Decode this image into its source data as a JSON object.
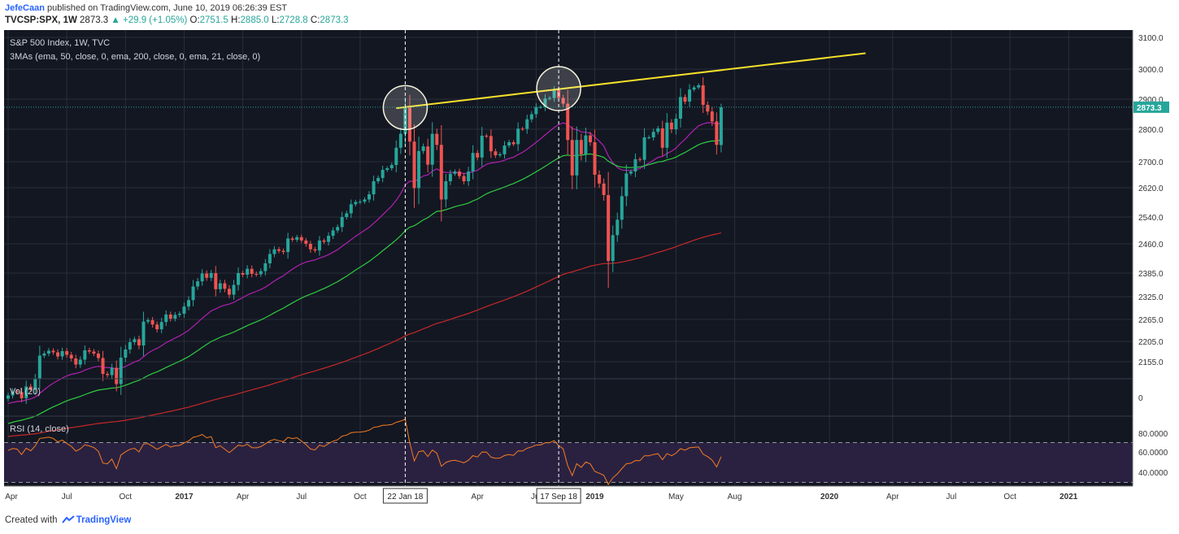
{
  "header": {
    "author": "JefeCaan",
    "published_text": "published on TradingView.com, June 10, 2019 06:26:39 EST",
    "symbol_interval": "TVCSP:SPX, 1W",
    "last_price": "2873.3",
    "change": "+29.9 (+1.05%)",
    "open_label": "O:",
    "open_value": "2751.5",
    "high_label": "H:",
    "high_value": "2885.0",
    "low_label": "L:",
    "low_value": "2728.8",
    "close_label": "C:",
    "close_value": "2873.3"
  },
  "footer": {
    "created_with": "Created with",
    "brand": "TradingView"
  },
  "colors": {
    "background": "#131722",
    "grid": "#2a2e39",
    "up": "#26a69a",
    "down": "#ef5350",
    "ema50": "#b020b0",
    "ema200": "#c62828",
    "ema21": "#2ecc40",
    "trendline": "#f5e02a",
    "rsi_line": "#f57c20",
    "rsi_band": "#2a2141",
    "price_tag": "#26a69a"
  },
  "chart_data": {
    "type": "candlestick",
    "title": "S&P 500 Index, 1W, TVC",
    "indicator_label": "3MAs (ema, 50, close, 0, ema, 200, close, 0, ema, 21, close, 0)",
    "volume_label": "Vol (20)",
    "rsi_label": "RSI (14, close)",
    "price_axis_ticks": [
      3100,
      3000,
      2900,
      2800,
      2700,
      2620,
      2540,
      2460,
      2385,
      2325,
      2265,
      2205,
      2155
    ],
    "price_axis_labels": [
      "3100.0",
      "3000.0",
      "2900.0",
      "2800.0",
      "2700.0",
      "2620.0",
      "2540.0",
      "2460.0",
      "2385.0",
      "2325.0",
      "2265.0",
      "2205.0",
      "2155.0"
    ],
    "volume_axis_labels": [
      "0"
    ],
    "rsi_axis_ticks": [
      80,
      60,
      40
    ],
    "rsi_axis_labels": [
      "80.0000",
      "60.0000",
      "40.0000"
    ],
    "rsi_bands": [
      70,
      30
    ],
    "time_axis_labels": [
      "Apr",
      "Jul",
      "Oct",
      "2017",
      "Apr",
      "Jul",
      "Oct",
      "Apr",
      "Jul",
      "2019",
      "May",
      "Aug",
      "2020",
      "Apr",
      "Jul",
      "Oct",
      "2021"
    ],
    "time_axis_bold": [
      false,
      false,
      false,
      true,
      false,
      false,
      false,
      false,
      false,
      true,
      false,
      false,
      true,
      false,
      false,
      false,
      true
    ],
    "time_axis_weeks": [
      0,
      13,
      26,
      39,
      52,
      65,
      78,
      104,
      117,
      130,
      148,
      161,
      182,
      196,
      209,
      222,
      235
    ],
    "vertical_markers": [
      {
        "label": "22 Jan 18",
        "week": 88
      },
      {
        "label": "17 Sep 18",
        "week": 122
      }
    ],
    "last_price_label": "2873.3",
    "last_price": 2873.3,
    "trendline": {
      "start_week": 86,
      "start_price": 2870,
      "end_week": 190,
      "end_price": 3050
    },
    "circles": [
      {
        "week": 88,
        "price": 2872
      },
      {
        "week": 122,
        "price": 2935
      }
    ],
    "weeks_start": 0,
    "closes": [
      2072,
      2082,
      2080,
      2065,
      2094,
      2086,
      2112,
      2170,
      2175,
      2182,
      2178,
      2168,
      2181,
      2172,
      2163,
      2148,
      2160,
      2183,
      2180,
      2175,
      2164,
      2125,
      2122,
      2140,
      2100,
      2165,
      2185,
      2203,
      2211,
      2195,
      2259,
      2263,
      2251,
      2238,
      2258,
      2278,
      2267,
      2277,
      2280,
      2299,
      2316,
      2351,
      2364,
      2384,
      2373,
      2385,
      2344,
      2359,
      2345,
      2330,
      2355,
      2385,
      2381,
      2396,
      2383,
      2382,
      2390,
      2410,
      2434,
      2446,
      2442,
      2439,
      2476,
      2472,
      2480,
      2470,
      2460,
      2446,
      2443,
      2470,
      2466,
      2484,
      2500,
      2510,
      2540,
      2550,
      2575,
      2581,
      2582,
      2588,
      2602,
      2640,
      2650,
      2675,
      2680,
      2690,
      2743,
      2786,
      2872,
      2762,
      2619,
      2733,
      2747,
      2691,
      2786,
      2752,
      2588,
      2640,
      2663,
      2670,
      2656,
      2640,
      2670,
      2727,
      2713,
      2780,
      2779,
      2732,
      2720,
      2723,
      2750,
      2760,
      2754,
      2802,
      2801,
      2833,
      2850,
      2874,
      2874,
      2902,
      2904,
      2930,
      2904,
      2885,
      2767,
      2658,
      2767,
      2723,
      2781,
      2760,
      2660,
      2633,
      2600,
      2416,
      2486,
      2532,
      2597,
      2664,
      2670,
      2708,
      2706,
      2775,
      2775,
      2792,
      2803,
      2743,
      2822,
      2800,
      2835,
      2907,
      2892,
      2932,
      2939,
      2946,
      2881,
      2859,
      2826,
      2752,
      2873
    ]
  }
}
